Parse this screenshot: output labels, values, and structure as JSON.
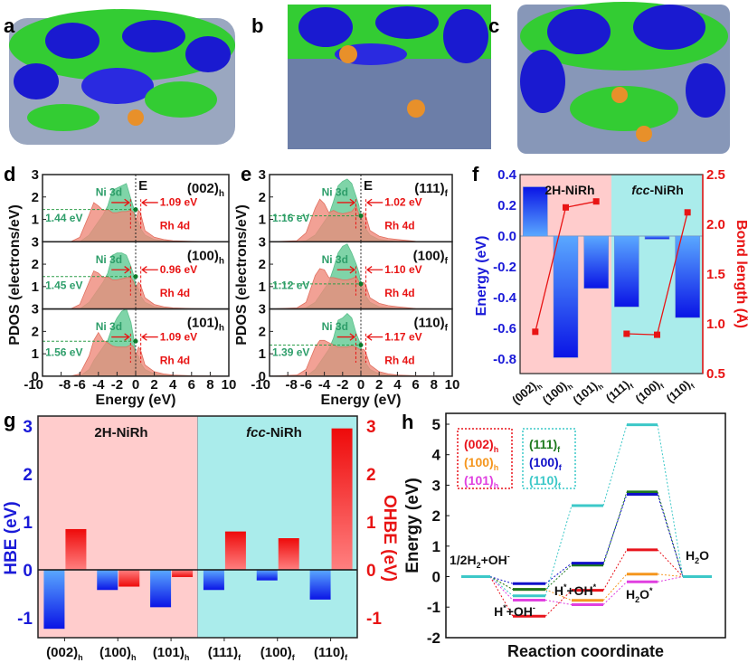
{
  "panel_letters": {
    "a": "a",
    "b": "b",
    "c": "c",
    "d": "d",
    "e": "e",
    "f": "f",
    "g": "g",
    "h": "h"
  },
  "colors": {
    "pink_bg": "#ffcccc",
    "cyan_bg": "#aaeceb",
    "blue": "#1a1ad8",
    "red": "#e81414",
    "green_text": "#2e9e6a",
    "ni_fill": "#7fd4a8",
    "rh_fill": "#ef8a7a"
  },
  "chart_data": [
    {
      "id": "d",
      "type": "area",
      "xlabel": "Energy (eV)",
      "ylabel": "PDOS (electrons/eV)",
      "xlim": [
        -10,
        10
      ],
      "ylim": [
        0,
        3
      ],
      "xticks": [
        "-10",
        "-8",
        "-6",
        "-4",
        "-2",
        "0",
        "2",
        "4",
        "6",
        "8",
        "10"
      ],
      "yticks": [
        "0",
        "1",
        "2",
        "3"
      ],
      "fermi_label": "E",
      "fermi_sub": "F",
      "energy_grid": [
        -10,
        -7,
        -6,
        -5,
        -4.5,
        -4,
        -3.5,
        -3,
        -2.5,
        -2,
        -1.5,
        -1,
        -0.5,
        -0.2,
        0,
        0.3,
        0.5,
        1,
        2,
        3,
        4,
        6,
        10
      ],
      "subplots": [
        {
          "facet": "(002)",
          "facet_sub": "h",
          "ni_label": "Ni 3d",
          "rh_label": "Rh 4d",
          "center_label": "1.44 eV",
          "gap_label": "1.09 eV",
          "center_dos": 1.44,
          "ni": [
            0,
            0,
            0,
            0.3,
            0.6,
            0.9,
            1.2,
            1.6,
            2.3,
            2.4,
            2.5,
            2.6,
            1.9,
            1.5,
            1.0,
            0.9,
            0.6,
            0.3,
            0.1,
            0.05,
            0.02,
            0,
            0
          ],
          "rh": [
            0,
            0,
            0.2,
            1.2,
            1.75,
            1.6,
            1.4,
            1.45,
            1.3,
            1.3,
            1.35,
            1.35,
            1.4,
            1.3,
            0.9,
            1.4,
            1.3,
            0.5,
            0.2,
            0.1,
            0.05,
            0.02,
            0
          ]
        },
        {
          "facet": "(100)",
          "facet_sub": "h",
          "ni_label": "Ni 3d",
          "rh_label": "Rh 4d",
          "center_label": "1.45 eV",
          "gap_label": "0.96 eV",
          "center_dos": 1.45,
          "ni": [
            0,
            0,
            0,
            0.3,
            0.6,
            0.9,
            1.2,
            1.6,
            2.4,
            2.5,
            2.5,
            2.4,
            1.9,
            1.5,
            1.1,
            0.9,
            0.6,
            0.3,
            0.1,
            0.05,
            0.02,
            0,
            0
          ],
          "rh": [
            0,
            0,
            0.2,
            1.2,
            1.7,
            1.6,
            1.4,
            1.45,
            1.3,
            1.3,
            1.35,
            1.4,
            1.4,
            1.2,
            0.9,
            1.2,
            1.1,
            0.5,
            0.2,
            0.1,
            0.05,
            0.02,
            0
          ]
        },
        {
          "facet": "(101)",
          "facet_sub": "h",
          "ni_label": "Ni 3d",
          "rh_label": "Rh 4d",
          "center_label": "1.56 eV",
          "gap_label": "1.09 eV",
          "center_dos": 1.56,
          "ni": [
            0,
            0,
            0,
            0.3,
            0.7,
            1.0,
            1.3,
            1.6,
            2.2,
            2.6,
            2.9,
            3.0,
            2.4,
            1.7,
            1.0,
            0.9,
            0.6,
            0.3,
            0.1,
            0.05,
            0.02,
            0,
            0
          ],
          "rh": [
            0,
            0,
            0.1,
            0.9,
            1.6,
            1.95,
            1.6,
            1.5,
            1.35,
            1.3,
            1.3,
            1.3,
            1.4,
            1.3,
            0.9,
            1.3,
            1.2,
            0.5,
            0.2,
            0.1,
            0.05,
            0.02,
            0
          ]
        }
      ]
    },
    {
      "id": "e",
      "type": "area",
      "xlabel": "Energy (eV)",
      "ylabel": "PDOS (electrons/eV)",
      "xlim": [
        -10,
        10
      ],
      "ylim": [
        0,
        3
      ],
      "xticks": [
        "-10",
        "-8",
        "-6",
        "-4",
        "-2",
        "0",
        "2",
        "4",
        "6",
        "8",
        "10"
      ],
      "yticks": [
        "0",
        "1",
        "2",
        "3"
      ],
      "fermi_label": "E",
      "fermi_sub": "F",
      "energy_grid": [
        -10,
        -7,
        -6,
        -5,
        -4.5,
        -4,
        -3.5,
        -3,
        -2.5,
        -2,
        -1.5,
        -1,
        -0.5,
        -0.2,
        0,
        0.3,
        0.5,
        1,
        2,
        3,
        4,
        6,
        10
      ],
      "subplots": [
        {
          "facet": "(111)",
          "facet_sub": "f",
          "ni_label": "Ni 3d",
          "rh_label": "Rh 4d",
          "center_label": "1.16 eV",
          "gap_label": "1.02 eV",
          "center_dos": 1.16,
          "ni": [
            0,
            0,
            0.05,
            0.3,
            0.6,
            0.9,
            1.2,
            1.8,
            2.5,
            2.7,
            2.8,
            2.6,
            2.0,
            1.6,
            1.1,
            0.9,
            0.6,
            0.3,
            0.1,
            0.05,
            0.02,
            0,
            0
          ],
          "rh": [
            0,
            0.05,
            0.4,
            1.5,
            1.9,
            1.7,
            1.3,
            1.4,
            1.3,
            1.25,
            1.3,
            1.35,
            1.6,
            1.2,
            1.1,
            1.3,
            1.2,
            0.5,
            0.25,
            0.15,
            0.1,
            0.02,
            0
          ]
        },
        {
          "facet": "(100)",
          "facet_sub": "f",
          "ni_label": "Ni 3d",
          "rh_label": "Rh 4d",
          "center_label": "1.12 eV",
          "gap_label": "1.10 eV",
          "center_dos": 1.12,
          "ni": [
            0,
            0,
            0.05,
            0.3,
            0.6,
            0.9,
            1.2,
            1.8,
            2.5,
            2.8,
            2.9,
            2.5,
            2.0,
            1.6,
            1.1,
            0.9,
            0.6,
            0.3,
            0.1,
            0.05,
            0.02,
            0,
            0
          ],
          "rh": [
            0,
            0.05,
            0.3,
            1.5,
            1.8,
            1.75,
            1.4,
            1.4,
            1.35,
            1.3,
            1.3,
            1.35,
            1.45,
            1.2,
            1.1,
            1.2,
            1.1,
            0.5,
            0.25,
            0.15,
            0.1,
            0.02,
            0
          ]
        },
        {
          "facet": "(110)",
          "facet_sub": "f",
          "ni_label": "Ni 3d",
          "rh_label": "Rh 4d",
          "center_label": "1.39 eV",
          "gap_label": "1.17 eV",
          "center_dos": 1.39,
          "ni": [
            0,
            0,
            0,
            0.3,
            0.6,
            0.9,
            1.2,
            1.7,
            2.5,
            2.6,
            2.8,
            2.6,
            1.9,
            1.6,
            1.3,
            0.9,
            0.6,
            0.3,
            0.1,
            0.05,
            0.02,
            0,
            0
          ],
          "rh": [
            0,
            0.05,
            0.3,
            1.3,
            1.6,
            1.6,
            1.5,
            1.4,
            1.3,
            1.3,
            1.3,
            1.35,
            1.3,
            1.2,
            1.2,
            1.2,
            1.1,
            0.5,
            0.2,
            0.1,
            0.05,
            0.02,
            0
          ]
        }
      ]
    },
    {
      "id": "f",
      "type": "bar",
      "categories": [
        {
          "main": "(002)",
          "sub": "h"
        },
        {
          "main": "(100)",
          "sub": "h"
        },
        {
          "main": "(101)",
          "sub": "h"
        },
        {
          "main": "(111)",
          "sub": "f"
        },
        {
          "main": "(100)",
          "sub": "f"
        },
        {
          "main": "(110)",
          "sub": "f"
        }
      ],
      "group_labels": [
        {
          "pre": "",
          "italic": "",
          "text": "2H-NiRh"
        },
        {
          "pre": "",
          "italic": "fcc",
          "text": "-NiRh"
        }
      ],
      "ylabel": "Energy (eV)",
      "y2label": "Bond length (Å)",
      "ylim": [
        -0.9,
        0.4
      ],
      "y2lim": [
        0.5,
        2.5
      ],
      "yticks": [
        "0.4",
        "0.2",
        "0.0",
        "-0.2",
        "-0.4",
        "-0.6",
        "-0.8"
      ],
      "y2ticks": [
        "2.5",
        "2.0",
        "1.5",
        "1.0",
        "0.5"
      ],
      "series": [
        {
          "name": "Energy",
          "axis": "left",
          "type": "bar",
          "values": [
            0.32,
            -0.79,
            -0.34,
            -0.46,
            -0.02,
            -0.53
          ]
        },
        {
          "name": "Bond length",
          "axis": "right",
          "type": "line",
          "values": [
            0.92,
            2.17,
            2.23,
            0.9,
            0.89,
            2.12
          ]
        }
      ]
    },
    {
      "id": "g",
      "type": "bar",
      "categories": [
        {
          "main": "(002)",
          "sub": "h"
        },
        {
          "main": "(100)",
          "sub": "h"
        },
        {
          "main": "(101)",
          "sub": "h"
        },
        {
          "main": "(111)",
          "sub": "f"
        },
        {
          "main": "(100)",
          "sub": "f"
        },
        {
          "main": "(110)",
          "sub": "f"
        }
      ],
      "group_labels": [
        {
          "italic": "",
          "text": "2H-NiRh"
        },
        {
          "italic": "fcc",
          "text": "-NiRh"
        }
      ],
      "ylabel": "HBE (eV)",
      "y2label": "OHBE (eV)",
      "ylim": [
        -1.4,
        3.2
      ],
      "yticks": [
        "3",
        "2",
        "1",
        "0",
        "-1"
      ],
      "y2ticks": [
        "3",
        "2",
        "1",
        "0",
        "-1"
      ],
      "series": [
        {
          "name": "HBE",
          "axis": "left",
          "values": [
            -1.23,
            -0.42,
            -0.78,
            -0.42,
            -0.22,
            -0.62
          ]
        },
        {
          "name": "OHBE",
          "axis": "right",
          "values": [
            0.85,
            -0.35,
            -0.15,
            0.8,
            0.66,
            2.95
          ]
        }
      ]
    },
    {
      "id": "h",
      "type": "line",
      "xlabel": "Reaction coordinate",
      "ylabel": "Energy (eV)",
      "ylim": [
        -2,
        5.35
      ],
      "yticks": [
        "5",
        "4",
        "3",
        "2",
        "1",
        "0",
        "-1",
        "-2"
      ],
      "stage_labels": [
        {
          "parts": [
            [
              "1/2H",
              ""
            ],
            [
              "2",
              "sub"
            ],
            [
              "+OH",
              ""
            ],
            [
              "-",
              "sup"
            ]
          ]
        },
        {
          "parts": [
            [
              "H",
              ""
            ],
            [
              "*",
              "sup"
            ],
            [
              "+OH",
              ""
            ],
            [
              "-",
              "sup"
            ]
          ]
        },
        {
          "parts": [
            [
              "H",
              ""
            ],
            [
              "*",
              "sup"
            ],
            [
              "+OH",
              ""
            ],
            [
              "*",
              "sup"
            ]
          ]
        },
        {
          "parts": [
            [
              "H",
              ""
            ],
            [
              "2",
              "sub"
            ],
            [
              "O",
              ""
            ],
            [
              "*",
              "sup"
            ]
          ]
        },
        {
          "parts": [
            [
              "H",
              ""
            ],
            [
              "2",
              "sub"
            ],
            [
              "O",
              ""
            ]
          ]
        }
      ],
      "series": [
        {
          "name": "(002)",
          "sub": "h",
          "color": "#e8141c",
          "values": [
            0,
            -1.3,
            -0.45,
            0.88,
            0
          ]
        },
        {
          "name": "(100)",
          "sub": "h",
          "color": "#f5961e",
          "values": [
            0,
            -0.42,
            -0.78,
            0.08,
            0
          ]
        },
        {
          "name": "(101)",
          "sub": "h",
          "color": "#e040e0",
          "values": [
            0,
            -0.77,
            -0.92,
            -0.17,
            0
          ]
        },
        {
          "name": "(111)",
          "sub": "f",
          "color": "#1f7a1f",
          "values": [
            0,
            -0.42,
            0.38,
            2.78,
            0
          ]
        },
        {
          "name": "(100)",
          "sub": "f",
          "color": "#1010c8",
          "values": [
            0,
            -0.23,
            0.44,
            2.7,
            0
          ]
        },
        {
          "name": "(110)",
          "sub": "f",
          "color": "#3cc8c8",
          "values": [
            0,
            -0.63,
            2.33,
            4.98,
            0
          ]
        }
      ]
    }
  ]
}
